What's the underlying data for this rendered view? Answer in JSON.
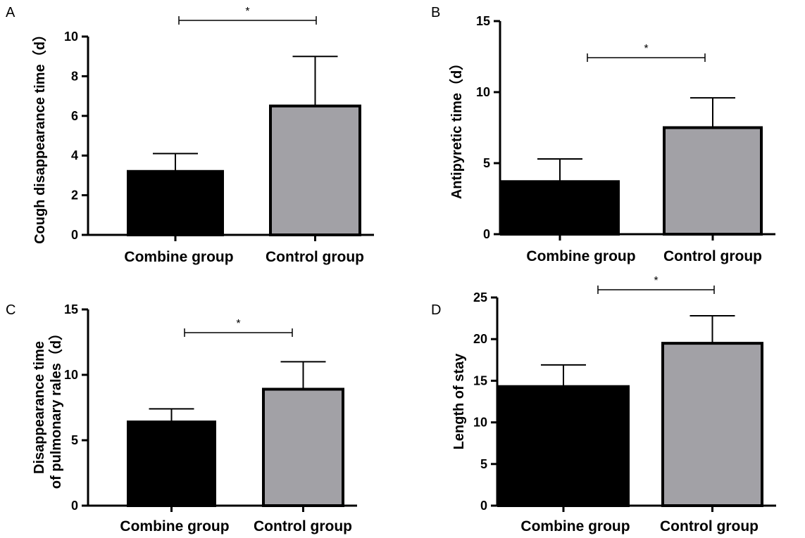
{
  "colors": {
    "combine": "#000000",
    "control": "#a2a1a6",
    "axis": "#000000"
  },
  "chart_data": [
    {
      "panel": "A",
      "type": "bar",
      "ylabel": "Cough disappearance time（d）",
      "categories": [
        "Combine group",
        "Control group"
      ],
      "values": [
        3.2,
        6.5
      ],
      "errors": [
        0.9,
        2.5
      ],
      "ylim": [
        0,
        10
      ],
      "yticks": [
        0,
        2,
        4,
        6,
        8,
        10
      ],
      "significance": "*"
    },
    {
      "panel": "B",
      "type": "bar",
      "ylabel": "Antipyretic time（d）",
      "categories": [
        "Combine group",
        "Control group"
      ],
      "values": [
        3.7,
        7.5
      ],
      "errors": [
        1.6,
        2.1
      ],
      "ylim": [
        0,
        15
      ],
      "yticks": [
        0,
        5,
        10,
        15
      ],
      "significance": "*"
    },
    {
      "panel": "C",
      "type": "bar",
      "ylabel": [
        "Disappearance time",
        "of pulmonary rales（d）"
      ],
      "categories": [
        "Combine group",
        "Control group"
      ],
      "values": [
        6.4,
        8.9
      ],
      "errors": [
        1.0,
        2.1
      ],
      "ylim": [
        0,
        15
      ],
      "yticks": [
        0,
        5,
        10,
        15
      ],
      "significance": "*"
    },
    {
      "panel": "D",
      "type": "bar",
      "ylabel": "Length of stay",
      "categories": [
        "Combine group",
        "Control group"
      ],
      "values": [
        14.3,
        19.5
      ],
      "errors": [
        2.6,
        3.3
      ],
      "ylim": [
        0,
        25
      ],
      "yticks": [
        0,
        5,
        10,
        15,
        20,
        25
      ],
      "significance": "*"
    }
  ]
}
